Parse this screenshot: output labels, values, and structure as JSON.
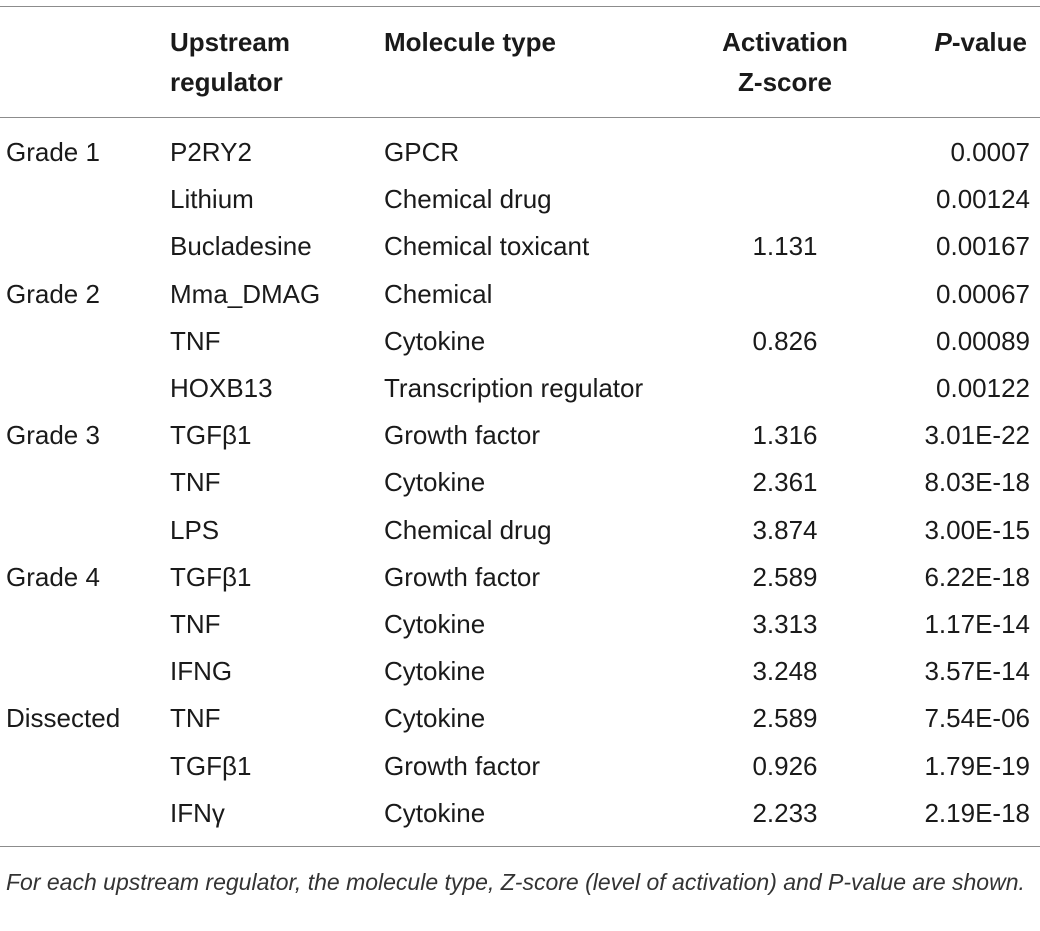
{
  "headers": {
    "col1": "",
    "col2": "Upstream regulator",
    "col3": "Molecule type",
    "col4": "Activation Z-score",
    "col5_italic": "P",
    "col5_rest": "-value"
  },
  "rows": [
    {
      "group": "Grade 1",
      "regulator": "P2RY2",
      "type": "GPCR",
      "z": "",
      "p": "0.0007"
    },
    {
      "group": "",
      "regulator": "Lithium",
      "type": "Chemical drug",
      "z": "",
      "p": "0.00124"
    },
    {
      "group": "",
      "regulator": "Bucladesine",
      "type": "Chemical toxicant",
      "z": "1.131",
      "p": "0.00167"
    },
    {
      "group": "Grade 2",
      "regulator": "Mma_DMAG",
      "type": "Chemical",
      "z": "",
      "p": "0.00067"
    },
    {
      "group": "",
      "regulator": "TNF",
      "type": "Cytokine",
      "z": "0.826",
      "p": "0.00089"
    },
    {
      "group": "",
      "regulator": "HOXB13",
      "type": "Transcription regulator",
      "z": "",
      "p": "0.00122"
    },
    {
      "group": "Grade 3",
      "regulator": "TGFβ1",
      "type": "Growth factor",
      "z": "1.316",
      "p": "3.01E-22"
    },
    {
      "group": "",
      "regulator": "TNF",
      "type": "Cytokine",
      "z": "2.361",
      "p": "8.03E-18"
    },
    {
      "group": "",
      "regulator": "LPS",
      "type": "Chemical drug",
      "z": "3.874",
      "p": "3.00E-15"
    },
    {
      "group": "Grade 4",
      "regulator": "TGFβ1",
      "type": "Growth factor",
      "z": "2.589",
      "p": "6.22E-18"
    },
    {
      "group": "",
      "regulator": "TNF",
      "type": "Cytokine",
      "z": "3.313",
      "p": "1.17E-14"
    },
    {
      "group": "",
      "regulator": "IFNG",
      "type": "Cytokine",
      "z": "3.248",
      "p": "3.57E-14"
    },
    {
      "group": "Dissected",
      "regulator": "TNF",
      "type": "Cytokine",
      "z": "2.589",
      "p": "7.54E-06"
    },
    {
      "group": "",
      "regulator": "TGFβ1",
      "type": "Growth factor",
      "z": "0.926",
      "p": "1.79E-19"
    },
    {
      "group": "",
      "regulator": "IFNγ",
      "type": "Cytokine",
      "z": "2.233",
      "p": "2.19E-18"
    }
  ],
  "caption": "For each upstream regulator, the molecule type, Z-score (level of activation) and P-value are shown."
}
